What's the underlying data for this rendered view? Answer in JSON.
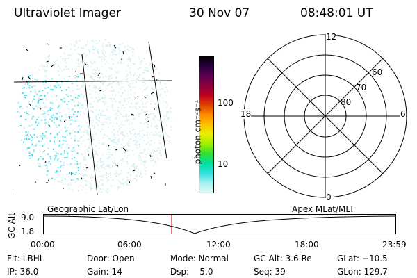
{
  "header": {
    "instrument": "Ultraviolet Imager",
    "date": "30 Nov 07",
    "time": "08:48:01 UT"
  },
  "colorbar": {
    "unit_label": "photon cm⁻²s⁻¹",
    "ticks": [
      "100",
      "10"
    ],
    "colors": [
      "#000000",
      "#2a003c",
      "#5a0050",
      "#8c0040",
      "#c00020",
      "#e04000",
      "#ff8a00",
      "#ffc000",
      "#e8f000",
      "#a0f000",
      "#30e030",
      "#00e0a0",
      "#30e0e0",
      "#a0f0f0",
      "#e0f8f8"
    ]
  },
  "polar_plot": {
    "mlt_labels": {
      "top": "12",
      "left": "18",
      "right": "6",
      "bottom": "0"
    },
    "lat_labels": [
      "60",
      "70",
      "80"
    ]
  },
  "orbit_plot": {
    "left_title": "Geographic Lat/Lon",
    "right_title": "Apex MLat/MLT",
    "y_axis_label": "GC Alt",
    "y_ticks": [
      "9.0",
      "1.8"
    ],
    "x_ticks": [
      "00:00",
      "06:00",
      "12:00",
      "18:00",
      "23:59"
    ],
    "current_time_marker": "08:48",
    "marker_color": "#c00000"
  },
  "status": {
    "flt": "Flt: LBHL",
    "door": "Door: Open",
    "mode": "Mode: Normal",
    "gc_alt": "GC Alt: 3.6 Re",
    "glat": "GLat: −10.5",
    "ip": "IP: 36.0",
    "gain": "Gain: 14",
    "dsp": "Dsp:    5.0",
    "seq": "Seq: 39",
    "glon": "GLon: 129.7"
  }
}
